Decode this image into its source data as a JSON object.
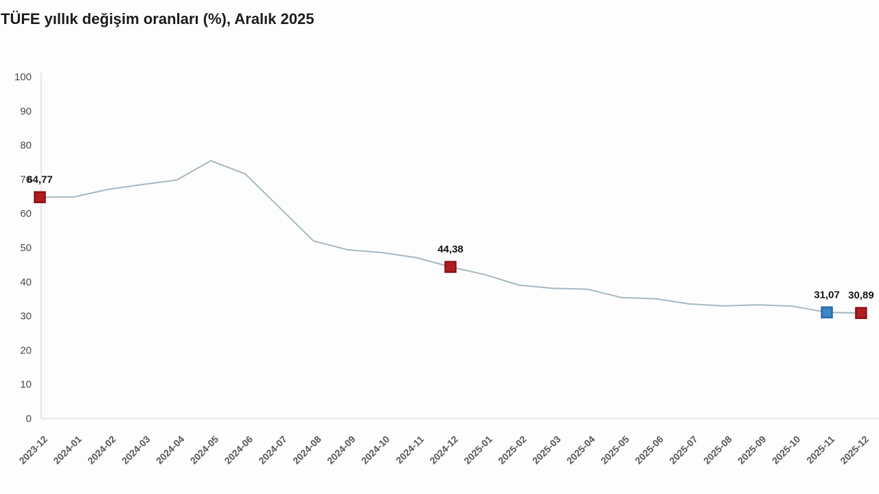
{
  "title": "TÜFE yıllık değişim oranları (%), Aralık 2025",
  "chart_data": {
    "type": "line",
    "series_name": "TÜFE yıllık değişim oranı (%)",
    "x": [
      "2023-12",
      "2024-01",
      "2024-02",
      "2024-03",
      "2024-04",
      "2024-05",
      "2024-06",
      "2024-07",
      "2024-08",
      "2024-09",
      "2024-10",
      "2024-11",
      "2024-12",
      "2025-01",
      "2025-02",
      "2025-03",
      "2025-04",
      "2025-05",
      "2025-06",
      "2025-07",
      "2025-08",
      "2025-09",
      "2025-10",
      "2025-11",
      "2025-12"
    ],
    "values": [
      64.77,
      64.86,
      67.07,
      68.5,
      69.8,
      75.45,
      71.6,
      61.78,
      51.97,
      49.38,
      48.58,
      47.09,
      44.38,
      42.12,
      39.05,
      38.1,
      37.86,
      35.41,
      35.05,
      33.52,
      32.95,
      33.29,
      32.87,
      31.07,
      30.89
    ],
    "ylim": [
      0,
      100
    ],
    "ytick_step": 10,
    "grid": false,
    "legend": "none",
    "line_color": "#a5b7c1",
    "axis_color": "#e0e0e0",
    "highlights": [
      {
        "x": "2023-12",
        "value": 64.77,
        "label": "64,77",
        "fill": "#b01e23",
        "stroke": "#8a1216"
      },
      {
        "x": "2024-12",
        "value": 44.38,
        "label": "44,38",
        "fill": "#b01e23",
        "stroke": "#8a1216"
      },
      {
        "x": "2025-11",
        "value": 31.07,
        "label": "31,07",
        "fill": "#3d86c6",
        "stroke": "#2a6ca8"
      },
      {
        "x": "2025-12",
        "value": 30.89,
        "label": "30,89",
        "fill": "#b01e23",
        "stroke": "#8a1216"
      }
    ]
  }
}
